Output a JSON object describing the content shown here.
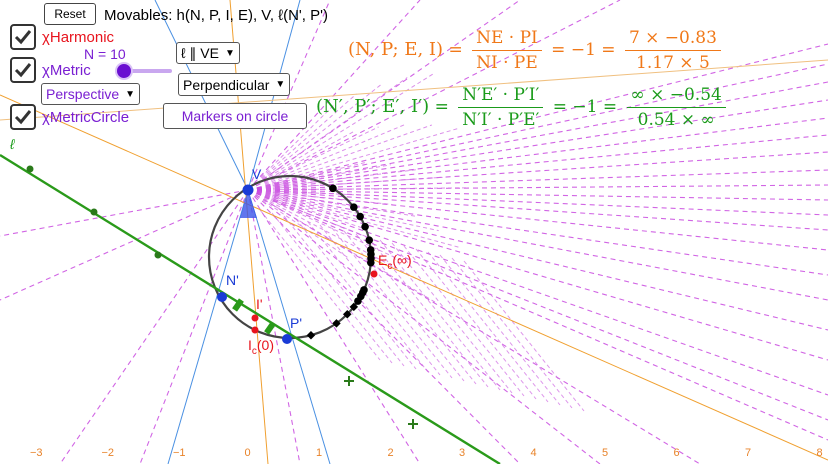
{
  "toolbar": {
    "reset_label": "Reset",
    "movables_text": "Movables: h(N, P, I, E), V, ℓ(N', P')"
  },
  "checkboxes": {
    "harmonic_label": "χHarmonic",
    "metric_label": "χMetric",
    "metric_circle_label": "χMetricCircle",
    "harmonic_color": "#e8141e",
    "metric_color": "#7a1fd2"
  },
  "slider": {
    "label": "N = 10",
    "value": 10
  },
  "dropdowns": {
    "line_mode": "ℓ ∥ VE",
    "construction": "Perpendicular",
    "view": "Perspective"
  },
  "buttons": {
    "markers_label": "Markers on circle"
  },
  "formula1": {
    "lhs": "(N, P; E, I)",
    "eq": "=",
    "num1": "NE · PI",
    "den1": "NI · PE",
    "result": "= −1 =",
    "num2": "7 × −0.83",
    "den2": "1.17 × 5",
    "color": "#f07818"
  },
  "formula2": {
    "lhs": "(N′, P′; E′, I′)",
    "eq": "=",
    "num1": "N′E′ · P′I′",
    "den1": "N′I′ · P′E′",
    "result": "= −1 =",
    "num2": "∞ × −0.54",
    "den2": "0.54 × ∞",
    "color": "#1a9b1a"
  },
  "points": {
    "V": "V",
    "N_prime": "N'",
    "P_prime": "P'",
    "I_prime": "I'",
    "E_c": "E",
    "E_c_sub": "c",
    "E_c_val": "(∞)",
    "I_c": "I",
    "I_c_sub": "c",
    "I_c_val": "(0)",
    "ell": "ℓ"
  },
  "axis": {
    "ticks": [
      "−3",
      "−2",
      "−1",
      "0",
      "1",
      "2",
      "3",
      "4",
      "5",
      "6",
      "7",
      "8"
    ]
  }
}
